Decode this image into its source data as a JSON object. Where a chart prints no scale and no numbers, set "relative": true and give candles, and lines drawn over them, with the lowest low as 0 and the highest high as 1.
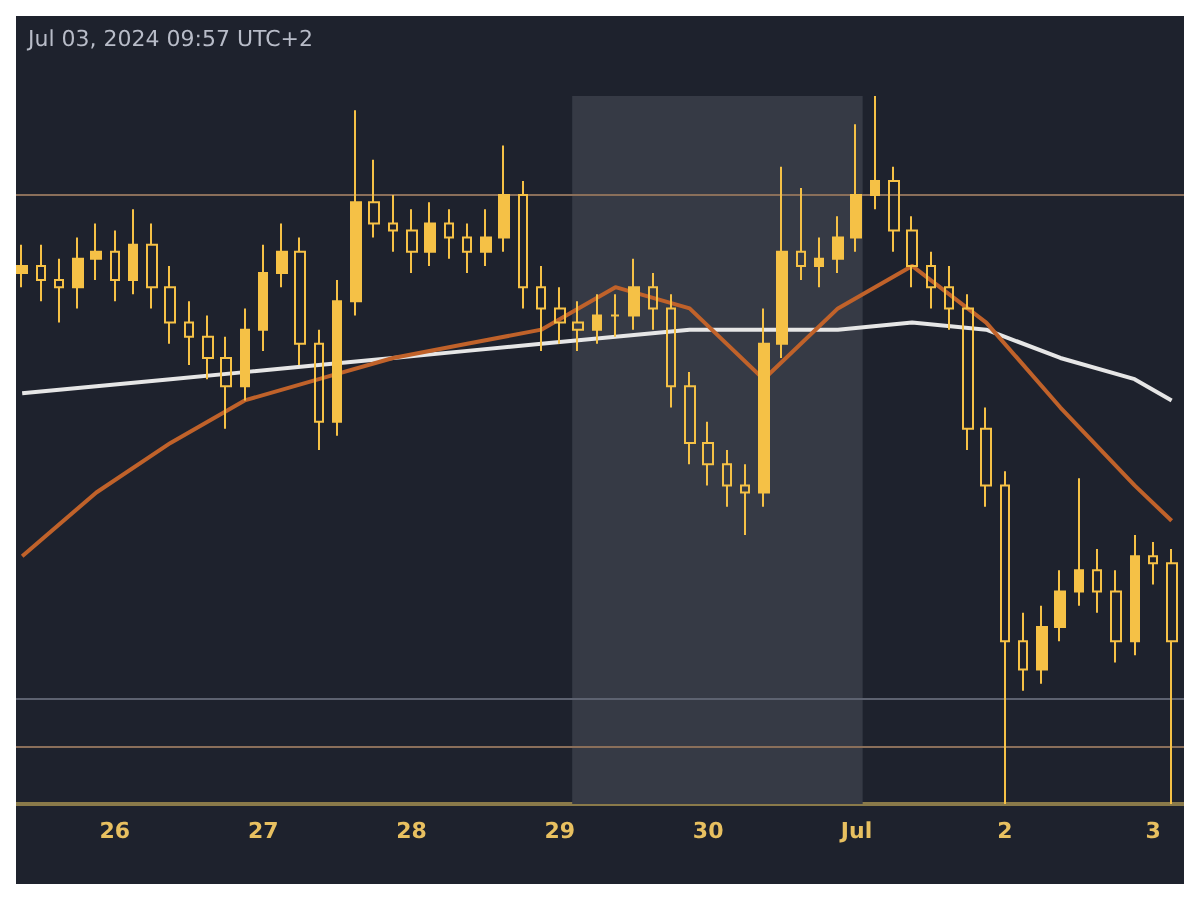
{
  "chart_data": {
    "type": "candlestick",
    "relative": true,
    "tick_labels": "x",
    "color": "#f5c146",
    "annotations": [
      "Jul 03, 2024 09:57 UTC+2"
    ],
    "x": [
      "2024-06-25T09:00",
      "2024-06-25T12:00",
      "2024-06-25T15:00",
      "2024-06-25T18:00",
      "2024-06-25T21:00",
      "2024-06-26T00:00",
      "2024-06-26T03:00",
      "2024-06-26T06:00",
      "2024-06-26T09:00",
      "2024-06-26T12:00",
      "2024-06-26T15:00",
      "2024-06-26T18:00",
      "2024-06-26T21:00",
      "2024-06-27T00:00",
      "2024-06-27T03:00",
      "2024-06-27T06:00",
      "2024-06-27T09:00",
      "2024-06-27T12:00",
      "2024-06-27T15:00",
      "2024-06-27T18:00",
      "2024-06-27T21:00",
      "2024-06-28T00:00",
      "2024-06-28T03:00",
      "2024-06-28T06:00",
      "2024-06-28T09:00",
      "2024-06-28T12:00",
      "2024-06-28T15:00",
      "2024-06-28T18:00",
      "2024-06-28T21:00",
      "2024-06-29T00:00",
      "2024-06-29T03:00",
      "2024-06-29T06:00",
      "2024-06-29T09:00",
      "2024-06-29T12:00",
      "2024-06-29T15:00",
      "2024-06-29T18:00",
      "2024-06-29T21:00",
      "2024-06-30T00:00",
      "2024-06-30T03:00",
      "2024-06-30T06:00",
      "2024-06-30T09:00",
      "2024-06-30T12:00",
      "2024-06-30T15:00",
      "2024-06-30T18:00",
      "2024-06-30T21:00",
      "2024-07-01T00:00",
      "2024-07-01T03:00",
      "2024-07-01T06:00",
      "2024-07-01T09:00",
      "2024-07-01T12:00",
      "2024-07-01T15:00",
      "2024-07-01T18:00",
      "2024-07-01T21:00",
      "2024-07-02T00:00",
      "2024-07-02T03:00",
      "2024-07-02T06:00",
      "2024-07-02T09:00",
      "2024-07-02T12:00",
      "2024-07-02T15:00",
      "2024-07-02T18:00",
      "2024-07-02T21:00",
      "2024-07-03T00:00",
      "2024-07-03T03:00"
    ],
    "ohlc": [
      [
        0.75,
        0.79,
        0.73,
        0.76
      ],
      [
        0.76,
        0.79,
        0.71,
        0.74
      ],
      [
        0.74,
        0.77,
        0.68,
        0.73
      ],
      [
        0.73,
        0.8,
        0.7,
        0.77
      ],
      [
        0.77,
        0.82,
        0.74,
        0.78
      ],
      [
        0.78,
        0.81,
        0.71,
        0.74
      ],
      [
        0.74,
        0.84,
        0.72,
        0.79
      ],
      [
        0.79,
        0.82,
        0.7,
        0.73
      ],
      [
        0.73,
        0.76,
        0.65,
        0.68
      ],
      [
        0.68,
        0.71,
        0.62,
        0.66
      ],
      [
        0.66,
        0.69,
        0.6,
        0.63
      ],
      [
        0.63,
        0.66,
        0.53,
        0.59
      ],
      [
        0.59,
        0.7,
        0.57,
        0.67
      ],
      [
        0.67,
        0.79,
        0.64,
        0.75
      ],
      [
        0.75,
        0.82,
        0.73,
        0.78
      ],
      [
        0.78,
        0.8,
        0.62,
        0.65
      ],
      [
        0.65,
        0.67,
        0.5,
        0.54
      ],
      [
        0.54,
        0.74,
        0.52,
        0.71
      ],
      [
        0.71,
        0.98,
        0.69,
        0.85
      ],
      [
        0.85,
        0.91,
        0.8,
        0.82
      ],
      [
        0.82,
        0.86,
        0.78,
        0.81
      ],
      [
        0.81,
        0.84,
        0.75,
        0.78
      ],
      [
        0.78,
        0.85,
        0.76,
        0.82
      ],
      [
        0.82,
        0.84,
        0.77,
        0.8
      ],
      [
        0.8,
        0.82,
        0.75,
        0.78
      ],
      [
        0.78,
        0.84,
        0.76,
        0.8
      ],
      [
        0.8,
        0.93,
        0.78,
        0.86
      ],
      [
        0.86,
        0.88,
        0.7,
        0.73
      ],
      [
        0.73,
        0.76,
        0.64,
        0.7
      ],
      [
        0.7,
        0.73,
        0.65,
        0.68
      ],
      [
        0.68,
        0.71,
        0.64,
        0.67
      ],
      [
        0.67,
        0.72,
        0.65,
        0.69
      ],
      [
        0.69,
        0.72,
        0.66,
        0.69
      ],
      [
        0.69,
        0.77,
        0.67,
        0.73
      ],
      [
        0.73,
        0.75,
        0.67,
        0.7
      ],
      [
        0.7,
        0.72,
        0.56,
        0.59
      ],
      [
        0.59,
        0.61,
        0.48,
        0.51
      ],
      [
        0.51,
        0.54,
        0.45,
        0.48
      ],
      [
        0.48,
        0.5,
        0.42,
        0.45
      ],
      [
        0.45,
        0.48,
        0.38,
        0.44
      ],
      [
        0.44,
        0.7,
        0.42,
        0.65
      ],
      [
        0.65,
        0.9,
        0.63,
        0.78
      ],
      [
        0.78,
        0.87,
        0.74,
        0.76
      ],
      [
        0.76,
        0.8,
        0.73,
        0.77
      ],
      [
        0.77,
        0.83,
        0.75,
        0.8
      ],
      [
        0.8,
        0.96,
        0.78,
        0.86
      ],
      [
        0.86,
        1.0,
        0.84,
        0.88
      ],
      [
        0.88,
        0.9,
        0.78,
        0.81
      ],
      [
        0.81,
        0.83,
        0.73,
        0.76
      ],
      [
        0.76,
        0.78,
        0.7,
        0.73
      ],
      [
        0.73,
        0.76,
        0.67,
        0.7
      ],
      [
        0.7,
        0.72,
        0.5,
        0.53
      ],
      [
        0.53,
        0.56,
        0.42,
        0.45
      ],
      [
        0.45,
        0.47,
        0.0,
        0.23
      ],
      [
        0.23,
        0.27,
        0.16,
        0.19
      ],
      [
        0.19,
        0.28,
        0.17,
        0.25
      ],
      [
        0.25,
        0.33,
        0.23,
        0.3
      ],
      [
        0.3,
        0.46,
        0.28,
        0.33
      ],
      [
        0.33,
        0.36,
        0.27,
        0.3
      ],
      [
        0.3,
        0.33,
        0.2,
        0.23
      ],
      [
        0.23,
        0.38,
        0.21,
        0.35
      ],
      [
        0.35,
        0.37,
        0.31,
        0.34
      ],
      [
        0.34,
        0.36,
        0.0,
        0.23
      ]
    ],
    "series": [
      {
        "type": "line",
        "color": "#e6e6e6",
        "x": [
          "2024-06-25T09:00",
          "2024-06-25T21:00",
          "2024-06-26T09:00",
          "2024-06-26T21:00",
          "2024-06-27T09:00",
          "2024-06-27T21:00",
          "2024-06-28T09:00",
          "2024-06-28T21:00",
          "2024-06-29T09:00",
          "2024-06-29T21:00",
          "2024-06-30T09:00",
          "2024-06-30T21:00",
          "2024-07-01T09:00",
          "2024-07-01T21:00",
          "2024-07-02T09:00",
          "2024-07-02T21:00",
          "2024-07-03T03:00"
        ],
        "values": [
          0.58,
          0.59,
          0.6,
          0.61,
          0.62,
          0.63,
          0.64,
          0.65,
          0.66,
          0.67,
          0.67,
          0.67,
          0.68,
          0.67,
          0.63,
          0.6,
          0.57
        ]
      },
      {
        "type": "line",
        "color": "#c0622a",
        "x": [
          "2024-06-25T09:00",
          "2024-06-25T21:00",
          "2024-06-26T09:00",
          "2024-06-26T21:00",
          "2024-06-27T09:00",
          "2024-06-27T21:00",
          "2024-06-28T09:00",
          "2024-06-28T21:00",
          "2024-06-29T09:00",
          "2024-06-29T21:00",
          "2024-06-30T09:00",
          "2024-06-30T21:00",
          "2024-07-01T09:00",
          "2024-07-01T21:00",
          "2024-07-02T09:00",
          "2024-07-02T21:00",
          "2024-07-03T03:00"
        ],
        "values": [
          0.35,
          0.44,
          0.51,
          0.57,
          0.6,
          0.63,
          0.65,
          0.67,
          0.73,
          0.7,
          0.6,
          0.7,
          0.76,
          0.68,
          0.56,
          0.45,
          0.4
        ]
      }
    ],
    "xlim": [
      "2024-06-25T08:00",
      "2024-07-03T05:00"
    ],
    "xticks": [
      {
        "value": "2024-06-26",
        "label": "26"
      },
      {
        "value": "2024-06-27",
        "label": "27"
      },
      {
        "value": "2024-06-28",
        "label": "28"
      },
      {
        "value": "2024-06-29",
        "label": "29"
      },
      {
        "value": "2024-06-30",
        "label": "30"
      },
      {
        "value": "2024-07-01",
        "label": "Jul"
      },
      {
        "value": "2024-07-02",
        "label": "2"
      },
      {
        "value": "2024-07-03",
        "label": "3"
      }
    ],
    "ref_lines": [
      {
        "axis": "y",
        "value": 0.86,
        "color": "#8a6f5a"
      },
      {
        "axis": "y",
        "value": 0.15,
        "color": "#5d6270"
      },
      {
        "axis": "y",
        "value": 0.08,
        "color": "#8a6f5a"
      }
    ],
    "bands": [
      {
        "axis": "x",
        "from": "2024-06-29T02:00",
        "to": "2024-07-01T01:00",
        "color": "#363a45"
      }
    ]
  }
}
